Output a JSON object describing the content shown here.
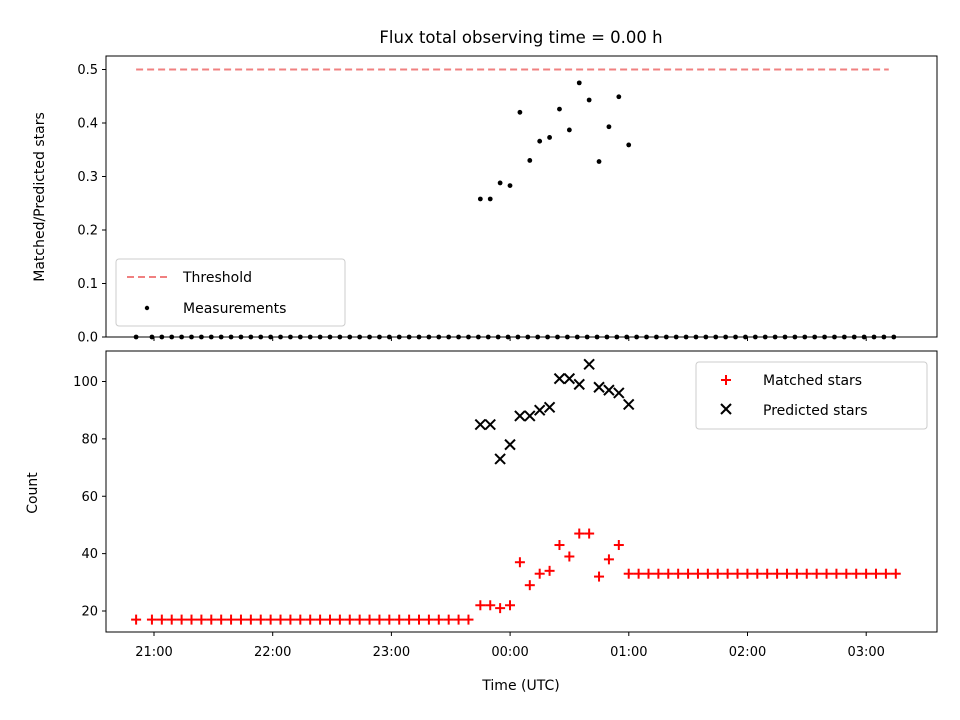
{
  "chart_data": [
    {
      "type": "scatter",
      "title": "Flux total observing time = 0.00 h",
      "xlabel": "",
      "ylabel": "Matched/Predicted stars",
      "ylim": [
        0,
        0.5
      ],
      "yticks": [
        0.0,
        0.1,
        0.2,
        0.3,
        0.4,
        0.5
      ],
      "ytick_labels": [
        "0.0",
        "0.1",
        "0.2",
        "0.3",
        "0.4",
        "0.5"
      ],
      "grid": false,
      "legend": "lower-left",
      "series": [
        {
          "name": "Threshold",
          "kind": "dashed-line",
          "color": "#f08080",
          "x": [
            "20:55",
            "03:20"
          ],
          "values": [
            0.5,
            0.5
          ]
        },
        {
          "name": "Measurements",
          "kind": "points",
          "color": "#000000",
          "x": [
            "20:55",
            "21:03",
            "21:08",
            "21:13",
            "21:18",
            "21:23",
            "21:28",
            "21:33",
            "21:38",
            "21:43",
            "21:48",
            "21:53",
            "21:58",
            "22:03",
            "22:08",
            "22:13",
            "22:18",
            "22:23",
            "22:28",
            "22:33",
            "22:38",
            "22:43",
            "22:48",
            "22:53",
            "22:58",
            "23:03",
            "23:08",
            "23:13",
            "23:18",
            "23:23",
            "23:28",
            "23:33",
            "23:38",
            "23:43",
            "23:48",
            "23:53",
            "23:58",
            "00:03",
            "00:08",
            "00:13",
            "00:18",
            "00:23",
            "00:28",
            "00:33",
            "00:38",
            "00:43",
            "00:48",
            "00:53",
            "00:58",
            "01:03",
            "01:08",
            "01:13",
            "01:18",
            "01:23",
            "01:28",
            "01:33",
            "01:38",
            "01:43",
            "01:48",
            "01:53",
            "01:58",
            "02:03",
            "02:08",
            "02:13",
            "02:18",
            "02:23",
            "02:28",
            "02:33",
            "02:38",
            "02:43",
            "02:48",
            "02:53",
            "02:58",
            "03:03",
            "03:08",
            "03:13",
            "03:18"
          ],
          "values": [
            0,
            0,
            0,
            0,
            0,
            0,
            0,
            0,
            0,
            0,
            0,
            0,
            0,
            0,
            0,
            0,
            0,
            0,
            0,
            0,
            0,
            0,
            0,
            0,
            0,
            0,
            0,
            0,
            0,
            0,
            0,
            0,
            0,
            0,
            0,
            0,
            0,
            0,
            0,
            0,
            0,
            0,
            0,
            0,
            0,
            0,
            0,
            0,
            0,
            0,
            0,
            0,
            0,
            0,
            0,
            0,
            0,
            0,
            0,
            0,
            0,
            0,
            0,
            0,
            0,
            0,
            0,
            0,
            0,
            0,
            0,
            0,
            0,
            0,
            0,
            0,
            0
          ]
        }
      ],
      "highlight_points": {
        "x": [
          "23:49",
          "23:54",
          "23:59",
          "00:04",
          "00:09",
          "00:14",
          "00:19",
          "00:24",
          "00:29",
          "00:34",
          "00:39",
          "00:44",
          "00:49",
          "00:54",
          "00:59",
          "01:04"
        ],
        "values": [
          0.258,
          0.258,
          0.288,
          0.283,
          0.42,
          0.33,
          0.366,
          0.373,
          0.426,
          0.387,
          0.475,
          0.443,
          0.328,
          0.393,
          0.449,
          0.359
        ]
      }
    },
    {
      "type": "scatter",
      "title": "",
      "xlabel": "Time (UTC)",
      "ylabel": "Count",
      "ylim": [
        13,
        110
      ],
      "yticks": [
        20,
        40,
        60,
        80,
        100
      ],
      "ytick_labels": [
        "20",
        "40",
        "60",
        "80",
        "100"
      ],
      "xticks": [
        "21:00",
        "22:00",
        "23:00",
        "00:00",
        "01:00",
        "02:00",
        "03:00"
      ],
      "grid": false,
      "legend": "top-right",
      "series": [
        {
          "name": "Matched stars",
          "marker": "plus",
          "color": "#ff0000",
          "x": [
            "20:55",
            "21:03",
            "21:08",
            "21:13",
            "21:18",
            "21:23",
            "21:28",
            "21:33",
            "21:38",
            "21:43",
            "21:48",
            "21:53",
            "21:58",
            "22:03",
            "22:08",
            "22:13",
            "22:18",
            "22:23",
            "22:28",
            "22:33",
            "22:38",
            "22:43",
            "22:48",
            "22:53",
            "22:58",
            "23:03",
            "23:08",
            "23:13",
            "23:18",
            "23:23",
            "23:28",
            "23:33",
            "23:38",
            "23:43",
            "23:49",
            "23:54",
            "23:59",
            "00:04",
            "00:09",
            "00:14",
            "00:19",
            "00:24",
            "00:29",
            "00:34",
            "00:39",
            "00:44",
            "00:49",
            "00:54",
            "00:59",
            "01:04",
            "01:09",
            "01:14",
            "01:19",
            "01:24",
            "01:29",
            "01:34",
            "01:39",
            "01:44",
            "01:49",
            "01:54",
            "01:59",
            "02:04",
            "02:09",
            "02:14",
            "02:19",
            "02:24",
            "02:29",
            "02:34",
            "02:39",
            "02:44",
            "02:49",
            "02:54",
            "02:59",
            "03:04",
            "03:09",
            "03:14",
            "03:19"
          ],
          "values": [
            17,
            17,
            17,
            17,
            17,
            17,
            17,
            17,
            17,
            17,
            17,
            17,
            17,
            17,
            17,
            17,
            17,
            17,
            17,
            17,
            17,
            17,
            17,
            17,
            17,
            17,
            17,
            17,
            17,
            17,
            17,
            17,
            17,
            17,
            22,
            22,
            21,
            22,
            37,
            29,
            33,
            34,
            43,
            39,
            47,
            47,
            32,
            38,
            43,
            33,
            33,
            33,
            33,
            33,
            33,
            33,
            33,
            33,
            33,
            33,
            33,
            33,
            33,
            33,
            33,
            33,
            33,
            33,
            33,
            33,
            33,
            33,
            33,
            33,
            33,
            33,
            33
          ]
        },
        {
          "name": "Predicted stars",
          "marker": "x",
          "color": "#000000",
          "x": [
            "23:49",
            "23:54",
            "23:59",
            "00:04",
            "00:09",
            "00:14",
            "00:19",
            "00:24",
            "00:29",
            "00:34",
            "00:39",
            "00:44",
            "00:49",
            "00:54",
            "00:59",
            "01:04"
          ],
          "values": [
            85,
            85,
            73,
            78,
            88,
            88,
            90,
            91,
            101,
            101,
            99,
            106,
            98,
            97,
            96,
            92
          ]
        }
      ]
    }
  ]
}
